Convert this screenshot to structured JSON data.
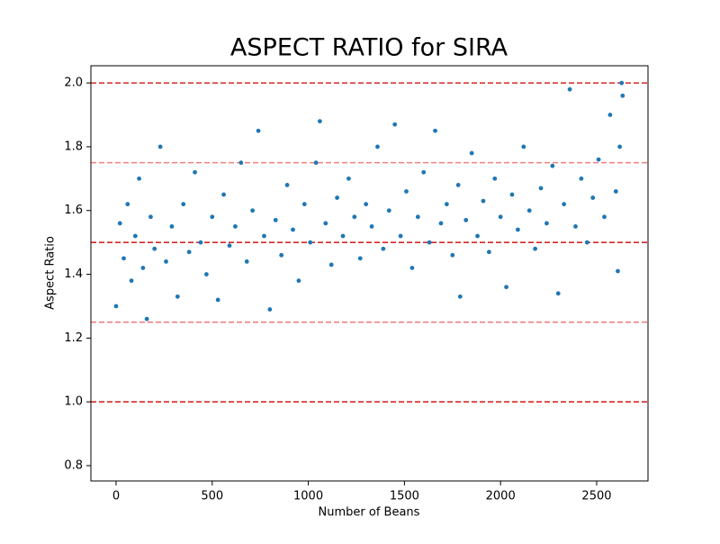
{
  "chart_data": {
    "type": "scatter",
    "title": "ASPECT RATIO for SIRA",
    "x_label": "Number of Beans",
    "y_label": "Aspect Ratio",
    "color": "#1f77b4",
    "x": [
      0,
      20,
      40,
      60,
      80,
      100,
      120,
      140,
      160,
      180,
      200,
      230,
      260,
      290,
      320,
      350,
      380,
      410,
      440,
      470,
      500,
      530,
      560,
      590,
      620,
      650,
      680,
      710,
      740,
      770,
      800,
      830,
      860,
      890,
      920,
      950,
      980,
      1010,
      1040,
      1060,
      1090,
      1120,
      1150,
      1180,
      1210,
      1240,
      1270,
      1300,
      1330,
      1360,
      1390,
      1420,
      1450,
      1480,
      1510,
      1540,
      1570,
      1600,
      1630,
      1660,
      1690,
      1720,
      1750,
      1780,
      1790,
      1820,
      1850,
      1880,
      1910,
      1940,
      1970,
      2000,
      2030,
      2060,
      2090,
      2120,
      2150,
      2180,
      2210,
      2240,
      2270,
      2300,
      2330,
      2360,
      2390,
      2420,
      2450,
      2480,
      2510,
      2540,
      2570,
      2600,
      2610,
      2620,
      2630,
      2635
    ],
    "values": [
      1.3,
      1.56,
      1.45,
      1.62,
      1.38,
      1.52,
      1.7,
      1.42,
      1.26,
      1.58,
      1.48,
      1.8,
      1.44,
      1.55,
      1.33,
      1.62,
      1.47,
      1.72,
      1.5,
      1.4,
      1.58,
      1.32,
      1.65,
      1.49,
      1.55,
      1.75,
      1.44,
      1.6,
      1.85,
      1.52,
      1.29,
      1.57,
      1.46,
      1.68,
      1.54,
      1.38,
      1.62,
      1.5,
      1.75,
      1.88,
      1.56,
      1.43,
      1.64,
      1.52,
      1.7,
      1.58,
      1.45,
      1.62,
      1.55,
      1.8,
      1.48,
      1.6,
      1.87,
      1.52,
      1.66,
      1.42,
      1.58,
      1.72,
      1.5,
      1.85,
      1.56,
      1.62,
      1.46,
      1.68,
      1.33,
      1.57,
      1.78,
      1.52,
      1.63,
      1.47,
      1.7,
      1.58,
      1.36,
      1.65,
      1.54,
      1.8,
      1.6,
      1.48,
      1.67,
      1.56,
      1.74,
      1.34,
      1.62,
      1.98,
      1.55,
      1.7,
      1.5,
      1.64,
      1.76,
      1.58,
      1.9,
      1.66,
      1.41,
      1.8,
      2.0,
      1.96
    ],
    "reference_lines": [
      {
        "value": 2.0,
        "color": "#d62728"
      },
      {
        "value": 1.75,
        "color": "#f08080"
      },
      {
        "value": 1.5,
        "color": "#d62728"
      },
      {
        "value": 1.25,
        "color": "#f08080"
      },
      {
        "value": 1.0,
        "color": "#d62728"
      }
    ],
    "xlim": [
      -131,
      2767
    ],
    "xticks": [
      0,
      500,
      1000,
      1500,
      2000,
      2500
    ],
    "ylim": [
      0.752,
      2.054
    ],
    "yticks": [
      {
        "value": 0.8,
        "label": "0.8"
      },
      {
        "value": 1.0,
        "label": "1.0"
      },
      {
        "value": 1.2,
        "label": "1.2"
      },
      {
        "value": 1.4,
        "label": "1.4"
      },
      {
        "value": 1.6,
        "label": "1.6"
      },
      {
        "value": 1.8,
        "label": "1.8"
      },
      {
        "value": 2.0,
        "label": "2.0"
      }
    ]
  }
}
